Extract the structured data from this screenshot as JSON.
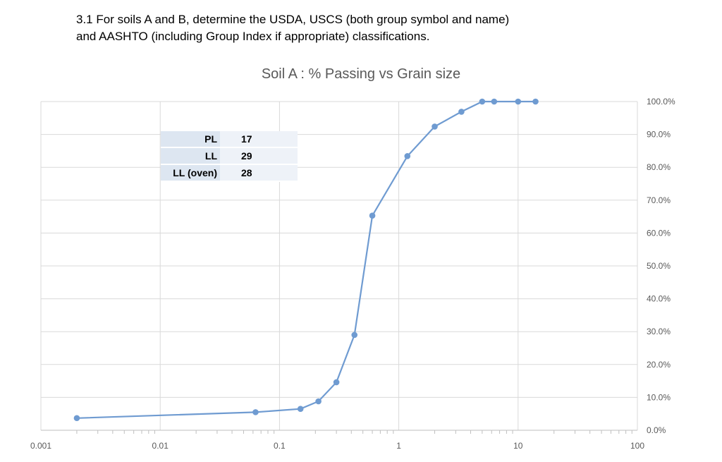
{
  "question": {
    "line1": "3.1 For soils A and B, determine the USDA, USCS (both group symbol and name)",
    "line2": "and AASHTO (including Group Index if appropriate) classifications."
  },
  "properties": [
    {
      "label": "PL",
      "value": "17"
    },
    {
      "label": "LL",
      "value": "29"
    },
    {
      "label": "LL (oven)",
      "value": "28"
    }
  ],
  "chart_data": {
    "type": "line",
    "title": "Soil A : % Passing vs Grain size",
    "xscale": "log",
    "xlim": [
      0.001,
      100
    ],
    "ylim": [
      0,
      1
    ],
    "x_ticks": [
      "0.001",
      "0.01",
      "0.1",
      "1",
      "10",
      "100"
    ],
    "y_ticks": [
      "0.0%",
      "10.0%",
      "20.0%",
      "30.0%",
      "40.0%",
      "50.0%",
      "60.0%",
      "70.0%",
      "80.0%",
      "90.0%",
      "100.0%"
    ],
    "y_axis_side": "right",
    "grid": true,
    "line_color": "#6f9bd1",
    "series": [
      {
        "x": [
          0.002,
          0.063,
          0.15,
          0.212,
          0.3,
          0.425,
          0.6,
          1.18,
          2.0,
          3.35,
          5.0,
          6.3,
          10.0,
          14.0
        ],
        "values": [
          0.037,
          0.055,
          0.065,
          0.088,
          0.146,
          0.29,
          0.653,
          0.834,
          0.924,
          0.969,
          1.0,
          1.0,
          1.0,
          1.0
        ]
      }
    ]
  }
}
